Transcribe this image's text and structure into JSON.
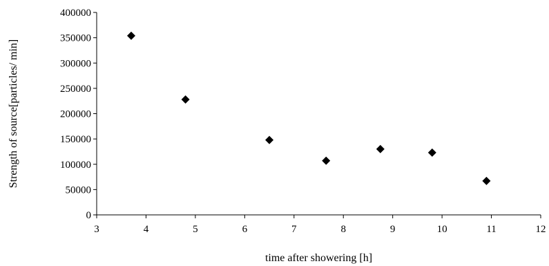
{
  "chart_data": {
    "type": "scatter",
    "title": "",
    "xlabel": "time after showering [h]",
    "ylabel": "Strength of source[particles/ min]",
    "xlim": [
      3,
      12
    ],
    "ylim": [
      0,
      400000
    ],
    "x_ticks": [
      "3",
      "4",
      "5",
      "6",
      "7",
      "8",
      "9",
      "10",
      "11",
      "12"
    ],
    "y_ticks": [
      "0",
      "50000",
      "100000",
      "150000",
      "200000",
      "250000",
      "300000",
      "350000",
      "400000"
    ],
    "grid": false,
    "legend": "none",
    "marker": "diamond",
    "marker_color": "#000000",
    "series": [
      {
        "x": [
          3.7,
          4.8,
          6.5,
          7.65,
          8.75,
          9.8,
          10.9
        ],
        "y": [
          354000,
          228000,
          148000,
          107000,
          130000,
          123000,
          67000
        ]
      }
    ]
  }
}
